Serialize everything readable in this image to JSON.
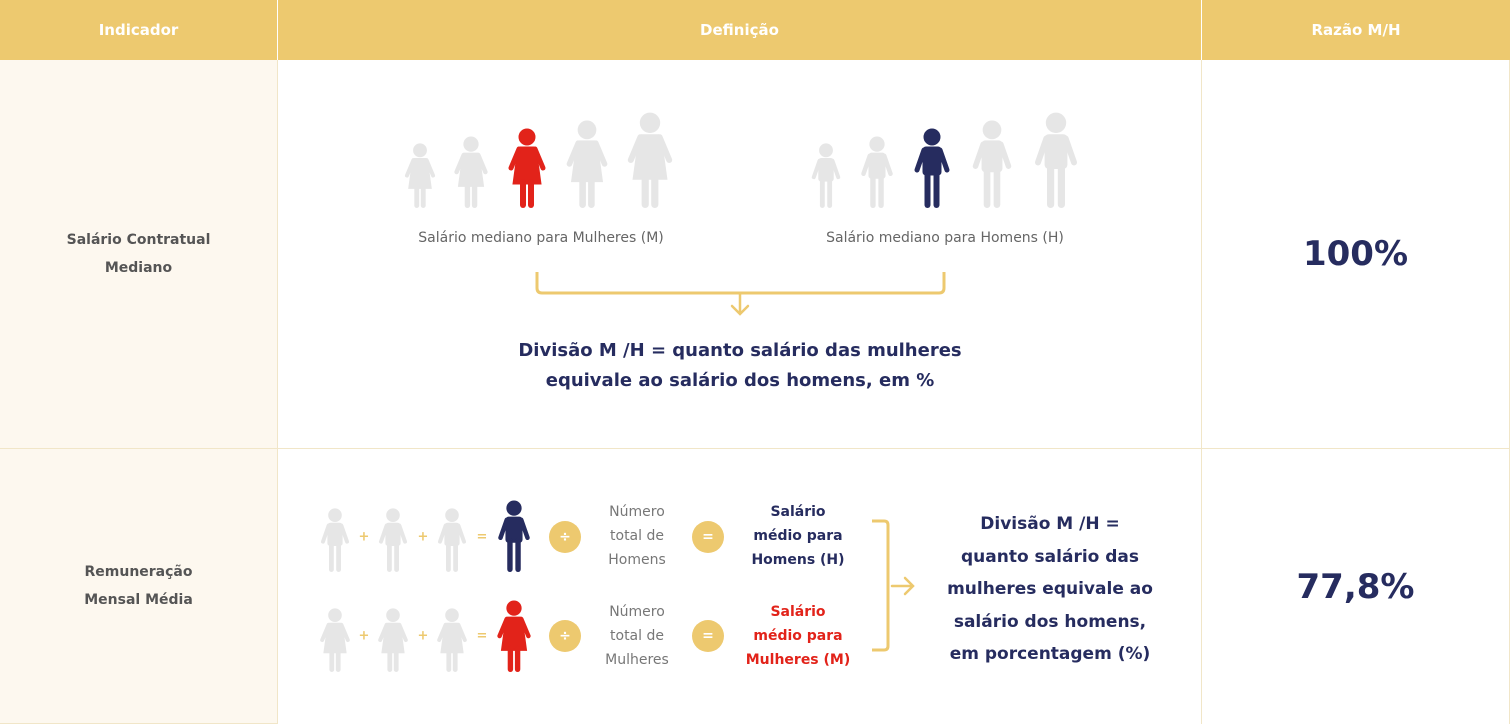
{
  "header": {
    "col1": "Indicador",
    "col2": "Definição",
    "col3": "Razão M/H"
  },
  "colors": {
    "gold": "#EDC96F",
    "navy": "#262C5F",
    "red": "#E2231A",
    "gray": "#E6E6E6"
  },
  "rows": [
    {
      "indicator_line1": "Salário Contratual",
      "indicator_line2": "Mediano",
      "women_caption": "Salário mediano para Mulheres (M)",
      "men_caption": "Salário mediano para Homens (H)",
      "result_line1": "Divisão M /H = quanto salário das mulheres",
      "result_line2": "equivale ao salário dos homens, em %",
      "ratio": "100%"
    },
    {
      "indicator_line1": "Remuneração",
      "indicator_line2": "Mensal Média",
      "plus": "+",
      "equals": "=",
      "divide": "÷",
      "men_count": [
        "Número",
        "total de",
        "Homens"
      ],
      "women_count": [
        "Número",
        "total de",
        "Mulheres"
      ],
      "men_result": [
        "Salário",
        "médio para",
        "Homens (H)"
      ],
      "women_result": [
        "Salário",
        "médio para",
        "Mulheres (M)"
      ],
      "result": [
        "Divisão M /H =",
        "quanto salário das",
        "mulheres equivale ao",
        "salário dos homens,",
        "em porcentagem (%)"
      ],
      "ratio": "77,8%"
    }
  ]
}
